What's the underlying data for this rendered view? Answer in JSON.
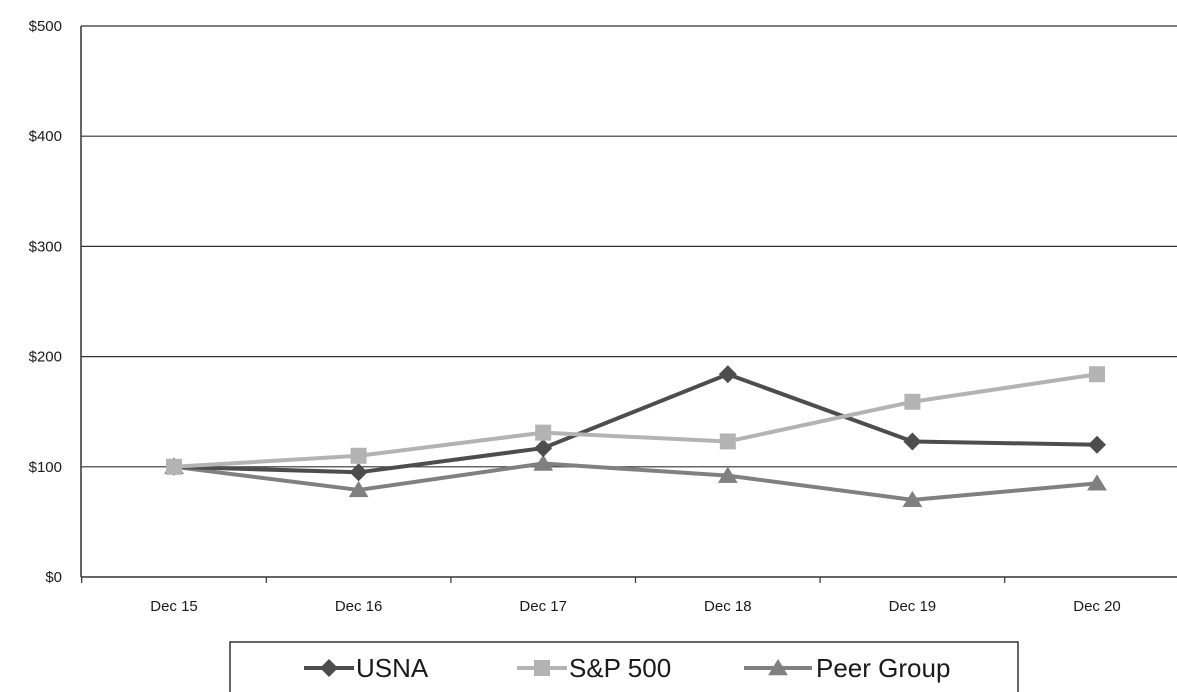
{
  "chart_data": {
    "type": "line",
    "categories": [
      "Dec 15",
      "Dec 16",
      "Dec 17",
      "Dec 18",
      "Dec 19",
      "Dec 20"
    ],
    "ylim": [
      0,
      500
    ],
    "y_ticks": [
      0,
      100,
      200,
      300,
      400,
      500
    ],
    "y_tick_labels": [
      "$0",
      "$100",
      "$200",
      "$300",
      "$400",
      "$500"
    ],
    "grid": true,
    "legend_position": "bottom",
    "series": [
      {
        "name": "USNA",
        "marker": "diamond",
        "color": "#4d4d4d",
        "values": [
          100,
          95,
          117,
          184,
          123,
          120
        ]
      },
      {
        "name": "S&P 500",
        "marker": "square",
        "color": "#b3b3b3",
        "values": [
          100,
          110,
          131,
          123,
          159,
          184
        ]
      },
      {
        "name": "Peer Group",
        "marker": "triangle",
        "color": "#808080",
        "values": [
          100,
          79,
          103,
          92,
          70,
          85
        ]
      }
    ]
  }
}
